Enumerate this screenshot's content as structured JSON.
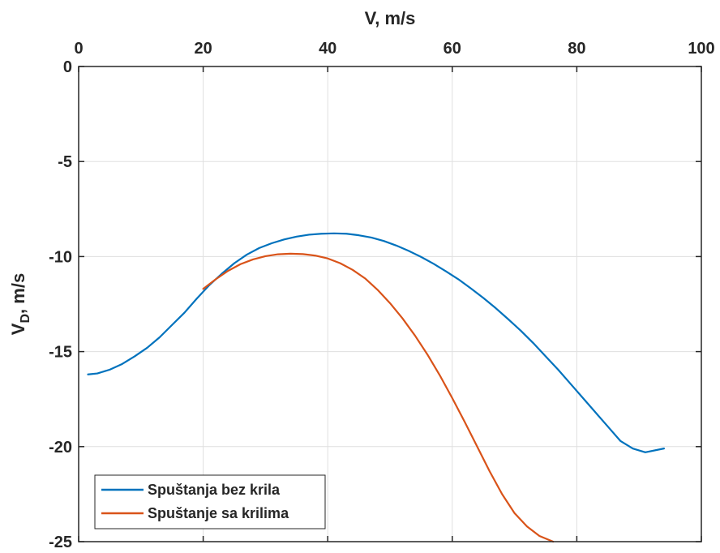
{
  "chart_data": {
    "type": "line",
    "title": "",
    "xlabel": "V, m/s",
    "ylabel_main": "V",
    "ylabel_sub": "D",
    "ylabel_rest": ", m/s",
    "xlim": [
      0,
      100
    ],
    "ylim": [
      -25,
      0
    ],
    "x_axis_location": "top",
    "y_direction": "normal",
    "xticks": [
      0,
      20,
      40,
      60,
      80,
      100
    ],
    "yticks": [
      0,
      -5,
      -10,
      -15,
      -20,
      -25
    ],
    "grid": true,
    "legend_location": "bottom-left",
    "series": [
      {
        "name": "Spuštanja bez krila",
        "color": "#0072BD",
        "x": [
          1.5,
          3,
          5,
          7,
          9,
          11,
          13,
          15,
          17,
          19,
          21,
          23,
          25,
          27,
          29,
          31,
          33,
          35,
          37,
          39,
          41,
          43,
          45,
          47,
          49,
          51,
          53,
          55,
          57,
          59,
          61,
          63,
          65,
          67,
          69,
          71,
          73,
          75,
          77,
          79,
          81,
          83,
          85,
          87,
          89,
          91,
          94
        ],
        "y": [
          -16.2,
          -16.15,
          -15.95,
          -15.65,
          -15.25,
          -14.8,
          -14.25,
          -13.6,
          -12.95,
          -12.2,
          -11.5,
          -10.9,
          -10.35,
          -9.9,
          -9.55,
          -9.3,
          -9.1,
          -8.95,
          -8.85,
          -8.8,
          -8.78,
          -8.8,
          -8.88,
          -9.0,
          -9.18,
          -9.42,
          -9.7,
          -10.02,
          -10.38,
          -10.78,
          -11.2,
          -11.68,
          -12.18,
          -12.72,
          -13.3,
          -13.9,
          -14.55,
          -15.25,
          -15.95,
          -16.7,
          -17.45,
          -18.2,
          -18.95,
          -19.7,
          -20.1,
          -20.3,
          -20.1
        ]
      },
      {
        "name": "Spuštanje sa krilima",
        "color": "#D95319",
        "x": [
          20,
          22,
          24,
          26,
          28,
          30,
          32,
          34,
          36,
          38,
          40,
          42,
          44,
          46,
          48,
          50,
          52,
          54,
          56,
          58,
          60,
          62,
          64,
          66,
          68,
          70,
          72,
          74,
          76.2
        ],
        "y": [
          -11.7,
          -11.2,
          -10.75,
          -10.4,
          -10.15,
          -9.98,
          -9.88,
          -9.85,
          -9.87,
          -9.95,
          -10.1,
          -10.35,
          -10.7,
          -11.15,
          -11.75,
          -12.45,
          -13.25,
          -14.15,
          -15.15,
          -16.25,
          -17.45,
          -18.7,
          -20.0,
          -21.3,
          -22.5,
          -23.5,
          -24.2,
          -24.7,
          -25.0
        ]
      }
    ]
  }
}
